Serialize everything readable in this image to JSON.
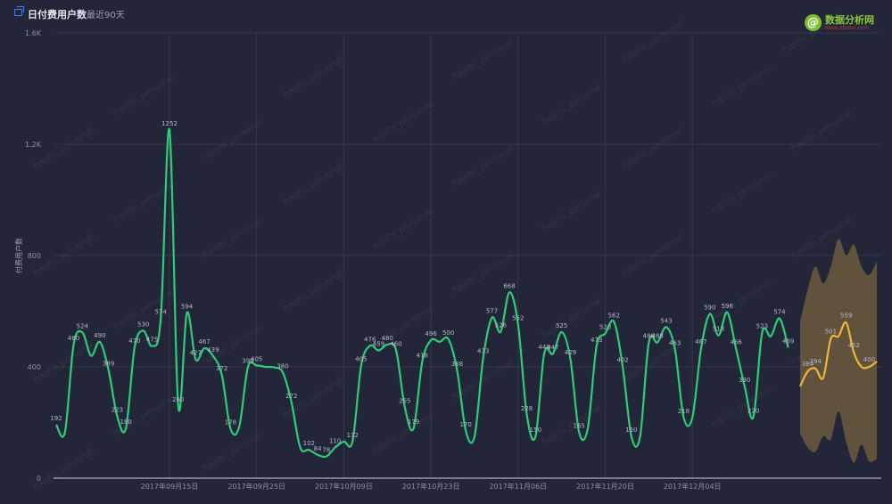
{
  "header": {
    "title": "日付费用户数",
    "range": "最近90天",
    "icon": "window-icon"
  },
  "logo": {
    "mark": "@",
    "text": "数据分析网",
    "sub": "www.afenxi.com"
  },
  "watermark": "haizhi_personal",
  "colors": {
    "background": "#232638",
    "series": "#2ecc7a",
    "forecast": "#f0b43c",
    "band": "#6b5a3e",
    "grid": "#3a3e53"
  },
  "chart_data": {
    "type": "line",
    "title": "日付费用户数",
    "ylabel": "付费用户数",
    "ylim": [
      0,
      1600
    ],
    "y_ticks": [
      {
        "label": "0",
        "value": 0
      },
      {
        "label": "400",
        "value": 400
      },
      {
        "label": "800",
        "value": 800
      },
      {
        "label": "1.2K",
        "value": 1200
      },
      {
        "label": "1.6K",
        "value": 1600
      }
    ],
    "x_ticks": [
      {
        "label": "2017年09月15日",
        "index": 13
      },
      {
        "label": "2017年09月25日",
        "index": 23
      },
      {
        "label": "2017年10月09日",
        "index": 33
      },
      {
        "label": "2017年10月23日",
        "index": 43
      },
      {
        "label": "2017年11月06日",
        "index": 53
      },
      {
        "label": "2017年11月20日",
        "index": 63
      },
      {
        "label": "2017年12月04日",
        "index": 73
      }
    ],
    "series": [
      {
        "values": [
          192,
          165,
          480,
          524,
          440,
          490,
          389,
          223,
          180,
          470,
          530,
          475,
          574,
          1252,
          260,
          594,
          427,
          467,
          439,
          372,
          178,
          185,
          399,
          405,
          400,
          398,
          380,
          272,
          110,
          102,
          84,
          78,
          110,
          132,
          132,
          405,
          476,
          459,
          480,
          460,
          255,
          179,
          418,
          496,
          490,
          500,
          388,
          170,
          150,
          433,
          577,
          526,
          668,
          552,
          228,
          150,
          448,
          447,
          525,
          429,
          165,
          180,
          473,
          520,
          562,
          402,
          150,
          150,
          488,
          488,
          543,
          463,
          218,
          218,
          467,
          590,
          513,
          596,
          466,
          330,
          220,
          523,
          510,
          574,
          469
        ]
      },
      {
        "values": [
          330,
          384,
          394,
          360,
          501,
          510,
          559,
          452,
          400,
          400,
          420
        ]
      }
    ],
    "forecast_band_upper": [
      560,
      680,
      760,
      700,
      760,
      860,
      800,
      840,
      760,
      730,
      780
    ],
    "forecast_band_lower": [
      160,
      110,
      95,
      150,
      140,
      240,
      130,
      55,
      120,
      60,
      70
    ],
    "data_labels": [
      {
        "index": 0,
        "text": "192"
      },
      {
        "index": 2,
        "text": "480"
      },
      {
        "index": 3,
        "text": "524"
      },
      {
        "index": 5,
        "text": "490"
      },
      {
        "index": 6,
        "text": "389"
      },
      {
        "index": 7,
        "text": "223"
      },
      {
        "index": 8,
        "text": "180"
      },
      {
        "index": 9,
        "text": "470"
      },
      {
        "index": 10,
        "text": "530"
      },
      {
        "index": 11,
        "text": "475"
      },
      {
        "index": 12,
        "text": "574"
      },
      {
        "index": 13,
        "text": "1252"
      },
      {
        "index": 14,
        "text": "260"
      },
      {
        "index": 15,
        "text": "594"
      },
      {
        "index": 16,
        "text": "427"
      },
      {
        "index": 17,
        "text": "467"
      },
      {
        "index": 18,
        "text": "439"
      },
      {
        "index": 19,
        "text": "372"
      },
      {
        "index": 20,
        "text": "178"
      },
      {
        "index": 22,
        "text": "399"
      },
      {
        "index": 23,
        "text": "405"
      },
      {
        "index": 26,
        "text": "380"
      },
      {
        "index": 27,
        "text": "272"
      },
      {
        "index": 29,
        "text": "102"
      },
      {
        "index": 30,
        "text": "84"
      },
      {
        "index": 31,
        "text": "78"
      },
      {
        "index": 32,
        "text": "110"
      },
      {
        "index": 34,
        "text": "132"
      },
      {
        "index": 35,
        "text": "405"
      },
      {
        "index": 36,
        "text": "476"
      },
      {
        "index": 37,
        "text": "459"
      },
      {
        "index": 38,
        "text": "480"
      },
      {
        "index": 39,
        "text": "460"
      },
      {
        "index": 40,
        "text": "255"
      },
      {
        "index": 41,
        "text": "179"
      },
      {
        "index": 42,
        "text": "418"
      },
      {
        "index": 43,
        "text": "496"
      },
      {
        "index": 45,
        "text": "500"
      },
      {
        "index": 46,
        "text": "388"
      },
      {
        "index": 47,
        "text": "170"
      },
      {
        "index": 49,
        "text": "433"
      },
      {
        "index": 50,
        "text": "577"
      },
      {
        "index": 51,
        "text": "526"
      },
      {
        "index": 52,
        "text": "668"
      },
      {
        "index": 53,
        "text": "552"
      },
      {
        "index": 54,
        "text": "228"
      },
      {
        "index": 55,
        "text": "150"
      },
      {
        "index": 56,
        "text": "448"
      },
      {
        "index": 57,
        "text": "447"
      },
      {
        "index": 58,
        "text": "525"
      },
      {
        "index": 59,
        "text": "429"
      },
      {
        "index": 60,
        "text": "165"
      },
      {
        "index": 62,
        "text": "473"
      },
      {
        "index": 63,
        "text": "520"
      },
      {
        "index": 64,
        "text": "562"
      },
      {
        "index": 65,
        "text": "402"
      },
      {
        "index": 66,
        "text": "150"
      },
      {
        "index": 68,
        "text": "488"
      },
      {
        "index": 69,
        "text": "488"
      },
      {
        "index": 70,
        "text": "543"
      },
      {
        "index": 71,
        "text": "463"
      },
      {
        "index": 72,
        "text": "218"
      },
      {
        "index": 74,
        "text": "467"
      },
      {
        "index": 75,
        "text": "590"
      },
      {
        "index": 76,
        "text": "513"
      },
      {
        "index": 77,
        "text": "596"
      },
      {
        "index": 78,
        "text": "466"
      },
      {
        "index": 79,
        "text": "330"
      },
      {
        "index": 80,
        "text": "220"
      },
      {
        "index": 81,
        "text": "523"
      },
      {
        "index": 83,
        "text": "574"
      },
      {
        "index": 84,
        "text": "469"
      }
    ],
    "forecast_labels": [
      {
        "index": 1,
        "text": "384"
      },
      {
        "index": 2,
        "text": "394"
      },
      {
        "index": 4,
        "text": "501"
      },
      {
        "index": 6,
        "text": "559"
      },
      {
        "index": 7,
        "text": "452"
      },
      {
        "index": 9,
        "text": "400"
      }
    ],
    "grid": true
  }
}
